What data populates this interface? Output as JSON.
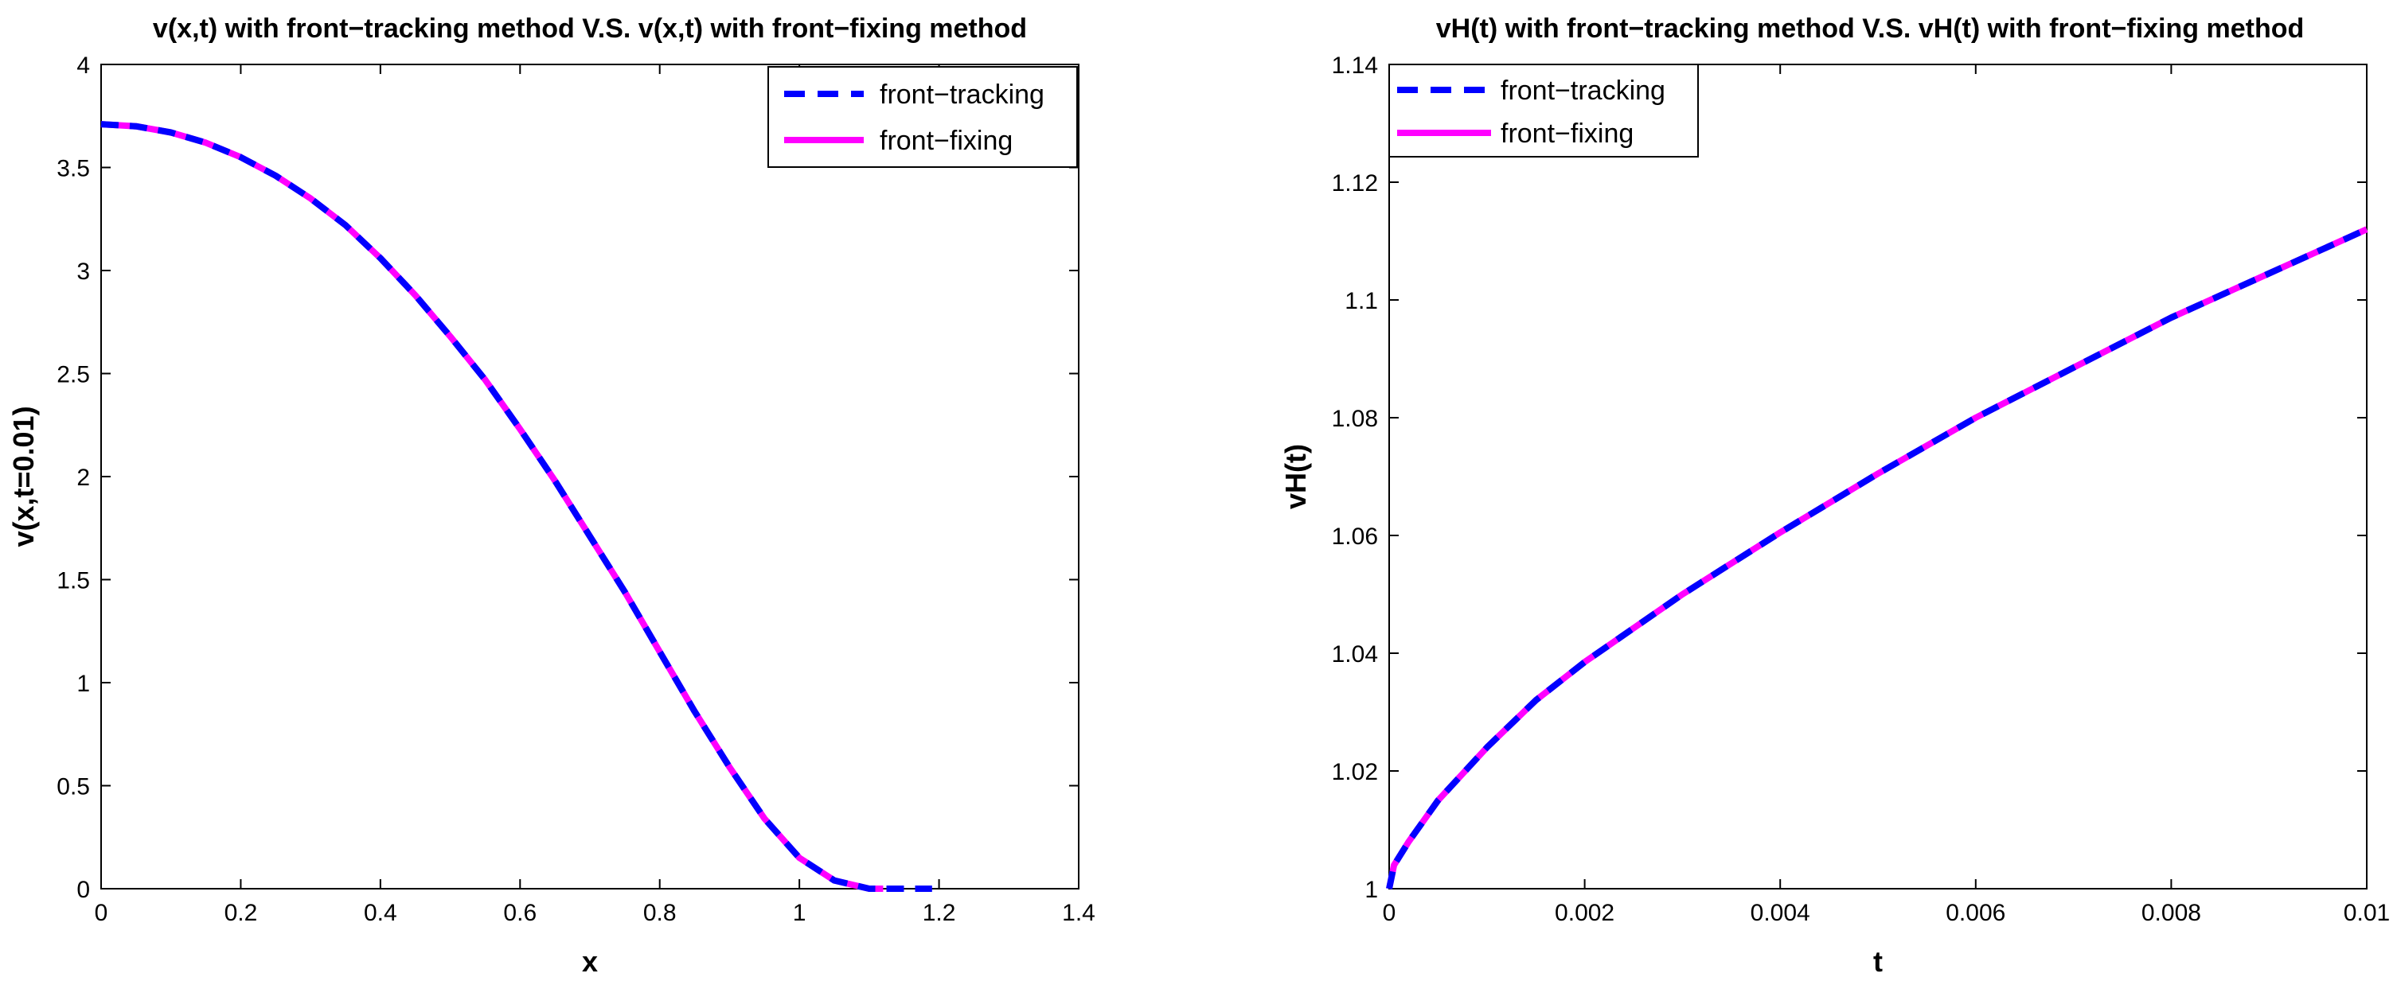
{
  "chart_data": [
    {
      "type": "line",
      "title": "v(x,t) with front−tracking method V.S. v(x,t) with front−fixing method",
      "xlabel": "x",
      "ylabel": "v(x,t=0.01)",
      "xlim": [
        0,
        1.4
      ],
      "ylim": [
        0,
        4
      ],
      "xticks": [
        0,
        0.2,
        0.4,
        0.6,
        0.8,
        1.0,
        1.2,
        1.4
      ],
      "xtick_labels": [
        "0",
        "0.2",
        "0.4",
        "0.6",
        "0.8",
        "1",
        "1.2",
        "1.4"
      ],
      "yticks": [
        0,
        0.5,
        1.0,
        1.5,
        2.0,
        2.5,
        3.0,
        3.5,
        4.0
      ],
      "ytick_labels": [
        "0",
        "0.5",
        "1",
        "1.5",
        "2",
        "2.5",
        "3",
        "3.5",
        "4"
      ],
      "grid": false,
      "legend": "top-right",
      "series": [
        {
          "name": "front−tracking",
          "color": "#0000ff",
          "style": "dashed",
          "x": [
            0,
            0.05,
            0.1,
            0.15,
            0.2,
            0.25,
            0.3,
            0.35,
            0.4,
            0.45,
            0.5,
            0.55,
            0.6,
            0.65,
            0.7,
            0.75,
            0.8,
            0.85,
            0.9,
            0.95,
            1.0,
            1.05,
            1.1,
            1.12,
            1.15,
            1.19
          ],
          "y": [
            3.71,
            3.7,
            3.67,
            3.62,
            3.55,
            3.46,
            3.35,
            3.22,
            3.06,
            2.88,
            2.68,
            2.47,
            2.23,
            1.98,
            1.71,
            1.44,
            1.15,
            0.86,
            0.59,
            0.34,
            0.15,
            0.04,
            0.0,
            0.0,
            0.0,
            0.0
          ]
        },
        {
          "name": "front−fixing",
          "color": "#ff00ff",
          "style": "solid",
          "x": [
            0,
            0.05,
            0.1,
            0.15,
            0.2,
            0.25,
            0.3,
            0.35,
            0.4,
            0.45,
            0.5,
            0.55,
            0.6,
            0.65,
            0.7,
            0.75,
            0.8,
            0.85,
            0.9,
            0.95,
            1.0,
            1.05,
            1.1,
            1.12
          ],
          "y": [
            3.71,
            3.7,
            3.67,
            3.62,
            3.55,
            3.46,
            3.35,
            3.22,
            3.06,
            2.88,
            2.68,
            2.47,
            2.23,
            1.98,
            1.71,
            1.44,
            1.15,
            0.86,
            0.59,
            0.34,
            0.15,
            0.04,
            0.0,
            0.0
          ]
        }
      ]
    },
    {
      "type": "line",
      "title": "vH(t) with front−tracking method V.S. vH(t) with front−fixing method",
      "xlabel": "t",
      "ylabel": "vH(t)",
      "xlim": [
        0,
        0.01
      ],
      "ylim": [
        1,
        1.14
      ],
      "xticks": [
        0,
        0.002,
        0.004,
        0.006,
        0.008,
        0.01
      ],
      "xtick_labels": [
        "0",
        "0.002",
        "0.004",
        "0.006",
        "0.008",
        "0.01"
      ],
      "yticks": [
        1.0,
        1.02,
        1.04,
        1.06,
        1.08,
        1.1,
        1.12,
        1.14
      ],
      "ytick_labels": [
        "1",
        "1.02",
        "1.04",
        "1.06",
        "1.08",
        "1.1",
        "1.12",
        "1.14"
      ],
      "grid": false,
      "legend": "top-left",
      "series": [
        {
          "name": "front−tracking",
          "color": "#0000ff",
          "style": "dashed",
          "x": [
            0,
            5e-05,
            0.0002,
            0.0005,
            0.001,
            0.0015,
            0.002,
            0.003,
            0.004,
            0.005,
            0.006,
            0.007,
            0.008,
            0.009,
            0.01
          ],
          "y": [
            1.0,
            1.004,
            1.008,
            1.015,
            1.024,
            1.032,
            1.0385,
            1.05,
            1.0605,
            1.0705,
            1.08,
            1.0885,
            1.097,
            1.1045,
            1.112
          ]
        },
        {
          "name": "front−fixing",
          "color": "#ff00ff",
          "style": "solid",
          "x": [
            0,
            5e-05,
            0.0002,
            0.0005,
            0.001,
            0.0015,
            0.002,
            0.003,
            0.004,
            0.005,
            0.006,
            0.007,
            0.008,
            0.009,
            0.01
          ],
          "y": [
            1.0,
            1.004,
            1.008,
            1.015,
            1.024,
            1.032,
            1.0385,
            1.05,
            1.0605,
            1.0705,
            1.08,
            1.0885,
            1.097,
            1.1045,
            1.112
          ]
        }
      ]
    }
  ]
}
